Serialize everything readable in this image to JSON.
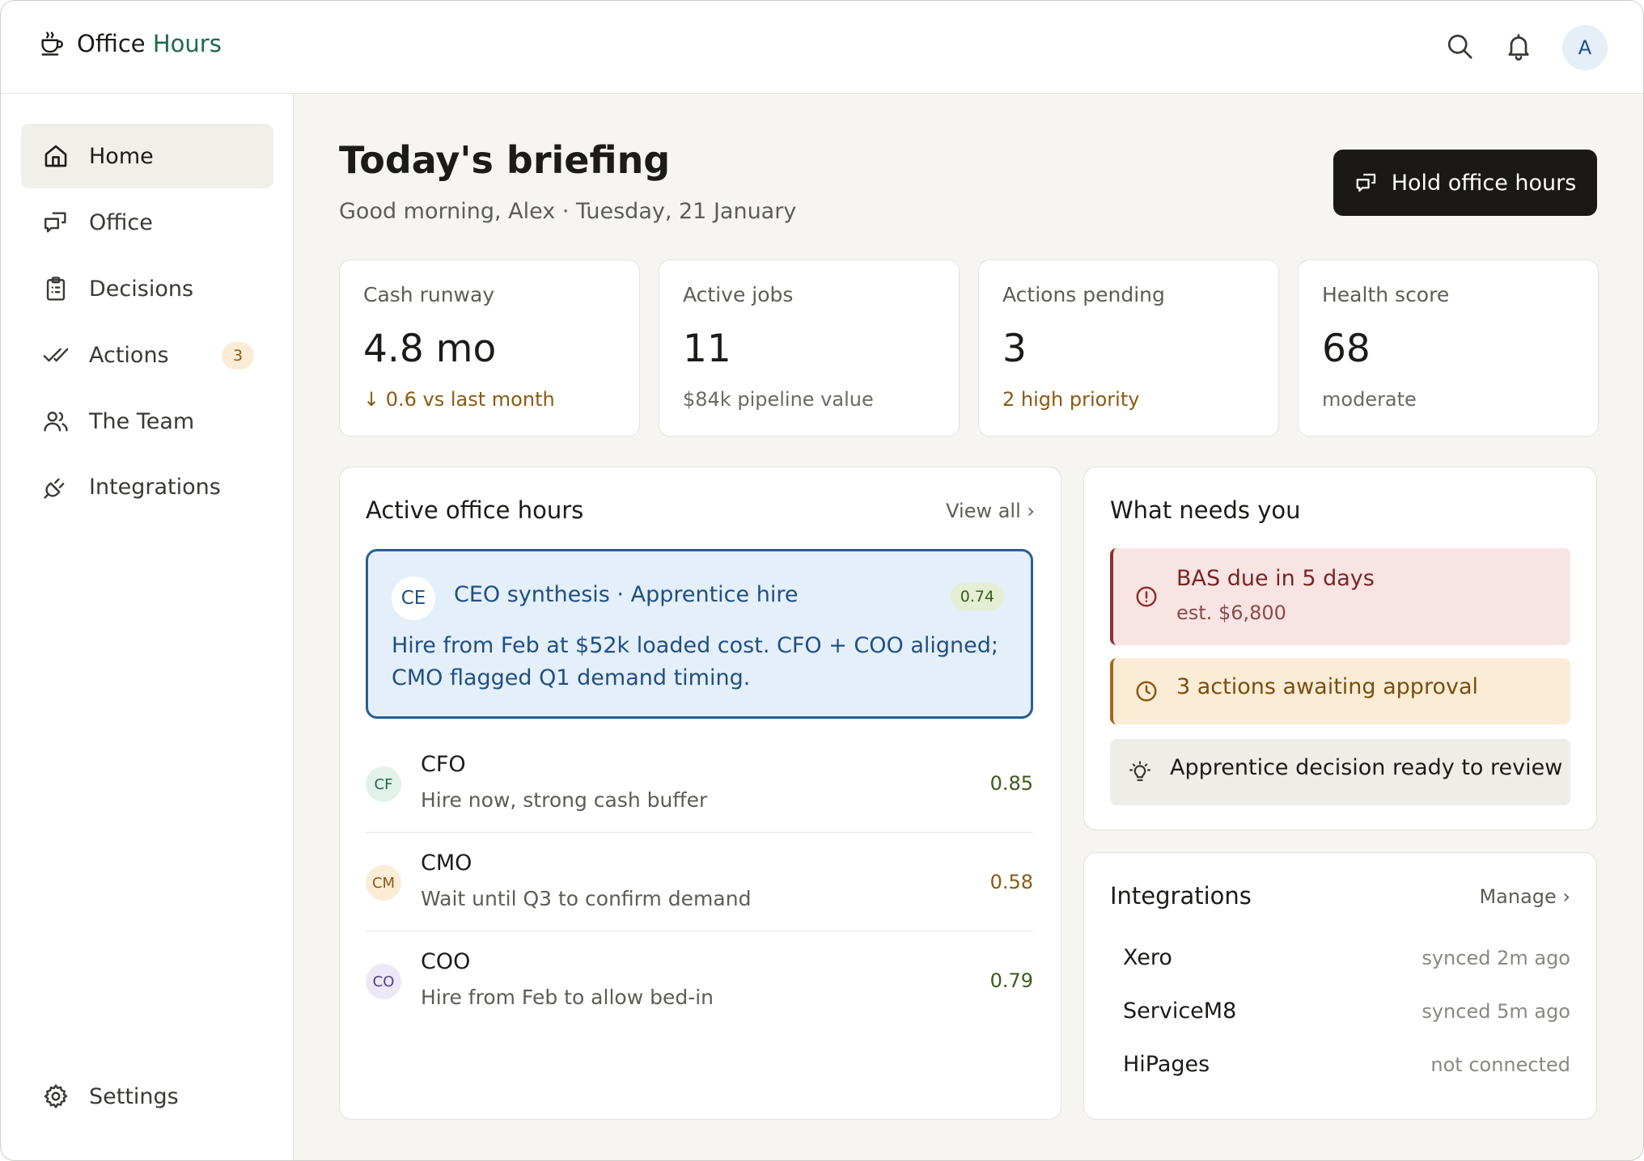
{
  "app": {
    "name_prefix": "Office ",
    "name_accent": "Hours",
    "avatar_initial": "A"
  },
  "sidebar": {
    "items": [
      {
        "label": "Home",
        "icon": "home-icon",
        "active": true
      },
      {
        "label": "Office",
        "icon": "chat-bubbles-icon"
      },
      {
        "label": "Decisions",
        "icon": "clipboard-icon"
      },
      {
        "label": "Actions",
        "icon": "double-check-icon",
        "badge": "3"
      },
      {
        "label": "The Team",
        "icon": "users-icon"
      },
      {
        "label": "Integrations",
        "icon": "plug-icon"
      }
    ],
    "settings_label": "Settings"
  },
  "page": {
    "title": "Today's briefing",
    "subtitle": "Good morning, Alex · Tuesday, 21 January",
    "primary_button": "Hold office hours"
  },
  "stats": [
    {
      "label": "Cash runway",
      "value": "4.8 mo",
      "note": "↓ 0.6 vs last month"
    },
    {
      "label": "Active jobs",
      "value": "11",
      "note": "$84k pipeline value"
    },
    {
      "label": "Actions pending",
      "value": "3",
      "note": "2 high priority"
    },
    {
      "label": "Health score",
      "value": "68",
      "note": "moderate"
    }
  ],
  "office_hours": {
    "title": "Active office hours",
    "view_all": "View all ›",
    "featured": {
      "initials": "CE",
      "title": "CEO synthesis · Apprentice hire",
      "score": "0.74",
      "body": "Hire from Feb at $52k loaded cost. CFO + COO aligned; CMO flagged Q1 demand timing."
    },
    "execs": [
      {
        "initials": "CF",
        "name": "CFO",
        "text": "Hire now, strong cash buffer",
        "score": "0.85"
      },
      {
        "initials": "CM",
        "name": "CMO",
        "text": "Wait until Q3 to confirm demand",
        "score": "0.58"
      },
      {
        "initials": "CO",
        "name": "COO",
        "text": "Hire from Feb to allow bed-in",
        "score": "0.79"
      }
    ]
  },
  "needs": {
    "title": "What needs you",
    "items": [
      {
        "title": "BAS due in 5 days",
        "sub": "est. $6,800",
        "icon": "alert-circle-icon"
      },
      {
        "title": "3 actions awaiting approval",
        "icon": "clock-icon"
      },
      {
        "title": "Apprentice decision ready to review",
        "icon": "lightbulb-icon"
      }
    ]
  },
  "integrations": {
    "title": "Integrations",
    "manage": "Manage ›",
    "items": [
      {
        "name": "Xero",
        "status": "synced 2m ago"
      },
      {
        "name": "ServiceM8",
        "status": "synced 5m ago"
      },
      {
        "name": "HiPages",
        "status": "not connected"
      }
    ]
  },
  "colors": {
    "brand_accent": "#1d6a4a",
    "primary_button": "#1a1917",
    "featured_border": "#2a5d94",
    "danger": "#8c2f2f",
    "warning": "#8a5a12"
  }
}
